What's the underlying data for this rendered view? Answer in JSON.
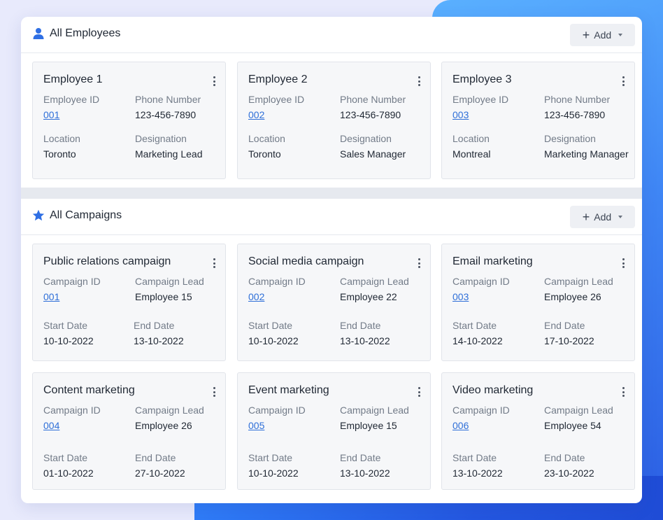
{
  "employees_section": {
    "title": "All Employees",
    "icon": "user-icon",
    "add_label": "Add",
    "cards": [
      {
        "name": "Employee 1",
        "id_label": "Employee ID",
        "id": "001",
        "phone_label": "Phone Number",
        "phone": "123-456-7890",
        "location_label": "Location",
        "location": "Toronto",
        "designation_label": "Designation",
        "designation": "Marketing Lead"
      },
      {
        "name": "Employee 2",
        "id_label": "Employee ID",
        "id": "002",
        "phone_label": "Phone Number",
        "phone": "123-456-7890",
        "location_label": "Location",
        "location": "Toronto",
        "designation_label": "Designation",
        "designation": "Sales Manager"
      },
      {
        "name": "Employee 3",
        "id_label": "Employee ID",
        "id": "003",
        "phone_label": "Phone Number",
        "phone": "123-456-7890",
        "location_label": "Location",
        "location": "Montreal",
        "designation_label": "Designation",
        "designation": "Marketing Manager"
      }
    ]
  },
  "campaigns_section": {
    "title": "All Campaigns",
    "icon": "star-icon",
    "add_label": "Add",
    "cards": [
      {
        "name": "Public relations campaign",
        "id_label": "Campaign ID",
        "id": "001",
        "lead_label": "Campaign Lead",
        "lead": "Employee 15",
        "start_label": "Start Date",
        "start": "10-10-2022",
        "end_label": "End Date",
        "end": "13-10-2022"
      },
      {
        "name": "Social media campaign",
        "id_label": "Campaign ID",
        "id": "002",
        "lead_label": "Campaign Lead",
        "lead": "Employee 22",
        "start_label": "Start Date",
        "start": "10-10-2022",
        "end_label": "End Date",
        "end": "13-10-2022"
      },
      {
        "name": "Email marketing",
        "id_label": "Campaign ID",
        "id": "003",
        "lead_label": "Campaign Lead",
        "lead": "Employee 26",
        "start_label": "Start Date",
        "start": "14-10-2022",
        "end_label": "End Date",
        "end": "17-10-2022"
      },
      {
        "name": "Content marketing",
        "id_label": "Campaign ID",
        "id": "004",
        "lead_label": "Campaign Lead",
        "lead": "Employee 26",
        "start_label": "Start Date",
        "start": "01-10-2022",
        "end_label": "End Date",
        "end": "27-10-2022"
      },
      {
        "name": "Event marketing",
        "id_label": "Campaign ID",
        "id": "005",
        "lead_label": "Campaign Lead",
        "lead": "Employee 15",
        "start_label": "Start Date",
        "start": "10-10-2022",
        "end_label": "End Date",
        "end": "13-10-2022"
      },
      {
        "name": "Video marketing",
        "id_label": "Campaign ID",
        "id": "006",
        "lead_label": "Campaign Lead",
        "lead": "Employee 54",
        "start_label": "Start Date",
        "start": "13-10-2022",
        "end_label": "End Date",
        "end": "23-10-2022"
      }
    ]
  },
  "colors": {
    "accent": "#2f6fd8",
    "icon_blue": "#2f6fe4",
    "card_bg": "#f6f7f9"
  }
}
